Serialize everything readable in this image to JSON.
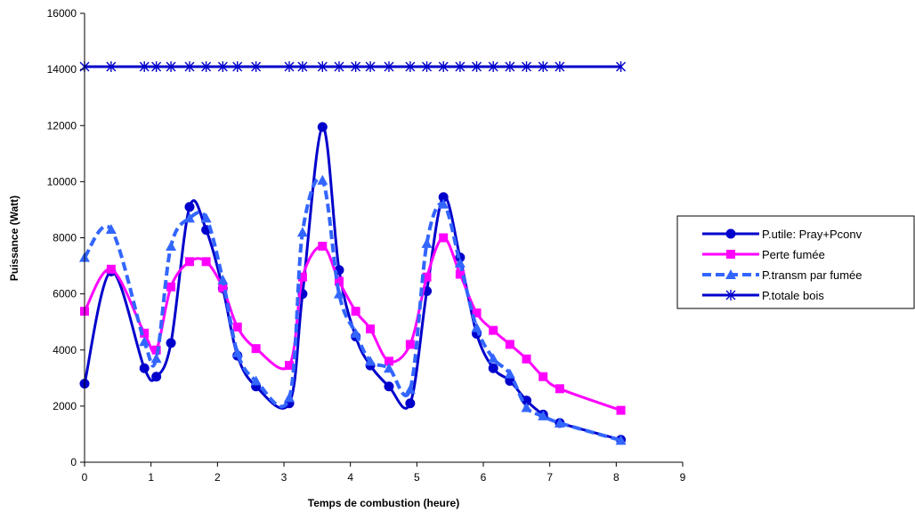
{
  "chart_data": {
    "type": "line",
    "smooth": true,
    "title": "",
    "xlabel": "Temps de combustion (heure)",
    "ylabel": "Puissance (Watt)",
    "xlim": [
      0,
      9
    ],
    "ylim": [
      0,
      16000
    ],
    "x_ticks": [
      "0",
      "1",
      "2",
      "3",
      "4",
      "5",
      "6",
      "7",
      "8",
      "9"
    ],
    "y_ticks": [
      "0",
      "2000",
      "4000",
      "6000",
      "8000",
      "10000",
      "12000",
      "14000",
      "16000"
    ],
    "grid": false,
    "legend_position": "right",
    "series": [
      {
        "name": "P.utile: Pray+Pconv",
        "color": "#0000CC",
        "marker": "circle",
        "style": "solid",
        "points": [
          [
            0,
            2800
          ],
          [
            0.4,
            6800
          ],
          [
            0.9,
            3350
          ],
          [
            1.08,
            3050
          ],
          [
            1.3,
            4250
          ],
          [
            1.58,
            9100
          ],
          [
            1.83,
            8280
          ],
          [
            2.08,
            6200
          ],
          [
            2.3,
            3800
          ],
          [
            2.58,
            2700
          ],
          [
            3.08,
            2100
          ],
          [
            3.28,
            6000
          ],
          [
            3.58,
            11950
          ],
          [
            3.83,
            6850
          ],
          [
            4.08,
            4480
          ],
          [
            4.3,
            3450
          ],
          [
            4.58,
            2700
          ],
          [
            4.9,
            2100
          ],
          [
            5.15,
            6100
          ],
          [
            5.4,
            9450
          ],
          [
            5.65,
            7300
          ],
          [
            5.9,
            4580
          ],
          [
            6.15,
            3350
          ],
          [
            6.4,
            2900
          ],
          [
            6.65,
            2200
          ],
          [
            6.9,
            1700
          ],
          [
            7.15,
            1400
          ],
          [
            8.07,
            800
          ]
        ]
      },
      {
        "name": "Perte fumée",
        "color": "#FF00FF",
        "marker": "square",
        "style": "solid",
        "points": [
          [
            0,
            5380
          ],
          [
            0.4,
            6880
          ],
          [
            0.9,
            4600
          ],
          [
            1.08,
            4000
          ],
          [
            1.3,
            6250
          ],
          [
            1.58,
            7150
          ],
          [
            1.83,
            7150
          ],
          [
            2.08,
            6220
          ],
          [
            2.3,
            4820
          ],
          [
            2.58,
            4050
          ],
          [
            3.08,
            3450
          ],
          [
            3.28,
            6600
          ],
          [
            3.58,
            7700
          ],
          [
            3.83,
            6450
          ],
          [
            4.08,
            5380
          ],
          [
            4.3,
            4750
          ],
          [
            4.58,
            3600
          ],
          [
            4.9,
            4200
          ],
          [
            5.15,
            6600
          ],
          [
            5.4,
            8000
          ],
          [
            5.65,
            6700
          ],
          [
            5.9,
            5320
          ],
          [
            6.15,
            4700
          ],
          [
            6.4,
            4200
          ],
          [
            6.65,
            3680
          ],
          [
            6.9,
            3050
          ],
          [
            7.15,
            2620
          ],
          [
            8.07,
            1850
          ]
        ]
      },
      {
        "name": "P.transm par fumée",
        "color": "#3366FF",
        "marker": "triangle",
        "style": "dashed",
        "points": [
          [
            0,
            7300
          ],
          [
            0.4,
            8300
          ],
          [
            0.9,
            4300
          ],
          [
            1.08,
            3700
          ],
          [
            1.3,
            7700
          ],
          [
            1.58,
            8700
          ],
          [
            1.83,
            8700
          ],
          [
            2.08,
            6500
          ],
          [
            2.3,
            3900
          ],
          [
            2.58,
            2900
          ],
          [
            3.08,
            2300
          ],
          [
            3.28,
            8200
          ],
          [
            3.58,
            10050
          ],
          [
            3.83,
            6000
          ],
          [
            4.08,
            4600
          ],
          [
            4.3,
            3600
          ],
          [
            4.58,
            3350
          ],
          [
            4.9,
            2600
          ],
          [
            5.15,
            7800
          ],
          [
            5.4,
            9200
          ],
          [
            5.65,
            7100
          ],
          [
            5.9,
            4800
          ],
          [
            6.15,
            3700
          ],
          [
            6.4,
            3150
          ],
          [
            6.65,
            1950
          ],
          [
            6.9,
            1650
          ],
          [
            7.15,
            1400
          ],
          [
            8.07,
            780
          ]
        ]
      },
      {
        "name": "P.totale bois",
        "color": "#0000CC",
        "marker": "asterisk",
        "style": "solid",
        "points": [
          [
            0,
            14100
          ],
          [
            0.4,
            14100
          ],
          [
            0.9,
            14100
          ],
          [
            1.08,
            14100
          ],
          [
            1.3,
            14100
          ],
          [
            1.58,
            14100
          ],
          [
            1.83,
            14100
          ],
          [
            2.08,
            14100
          ],
          [
            2.3,
            14100
          ],
          [
            2.58,
            14100
          ],
          [
            3.08,
            14100
          ],
          [
            3.28,
            14100
          ],
          [
            3.58,
            14100
          ],
          [
            3.83,
            14100
          ],
          [
            4.08,
            14100
          ],
          [
            4.3,
            14100
          ],
          [
            4.58,
            14100
          ],
          [
            4.9,
            14100
          ],
          [
            5.15,
            14100
          ],
          [
            5.4,
            14100
          ],
          [
            5.65,
            14100
          ],
          [
            5.9,
            14100
          ],
          [
            6.15,
            14100
          ],
          [
            6.4,
            14100
          ],
          [
            6.65,
            14100
          ],
          [
            6.9,
            14100
          ],
          [
            7.15,
            14100
          ],
          [
            8.07,
            14100
          ]
        ]
      }
    ]
  }
}
